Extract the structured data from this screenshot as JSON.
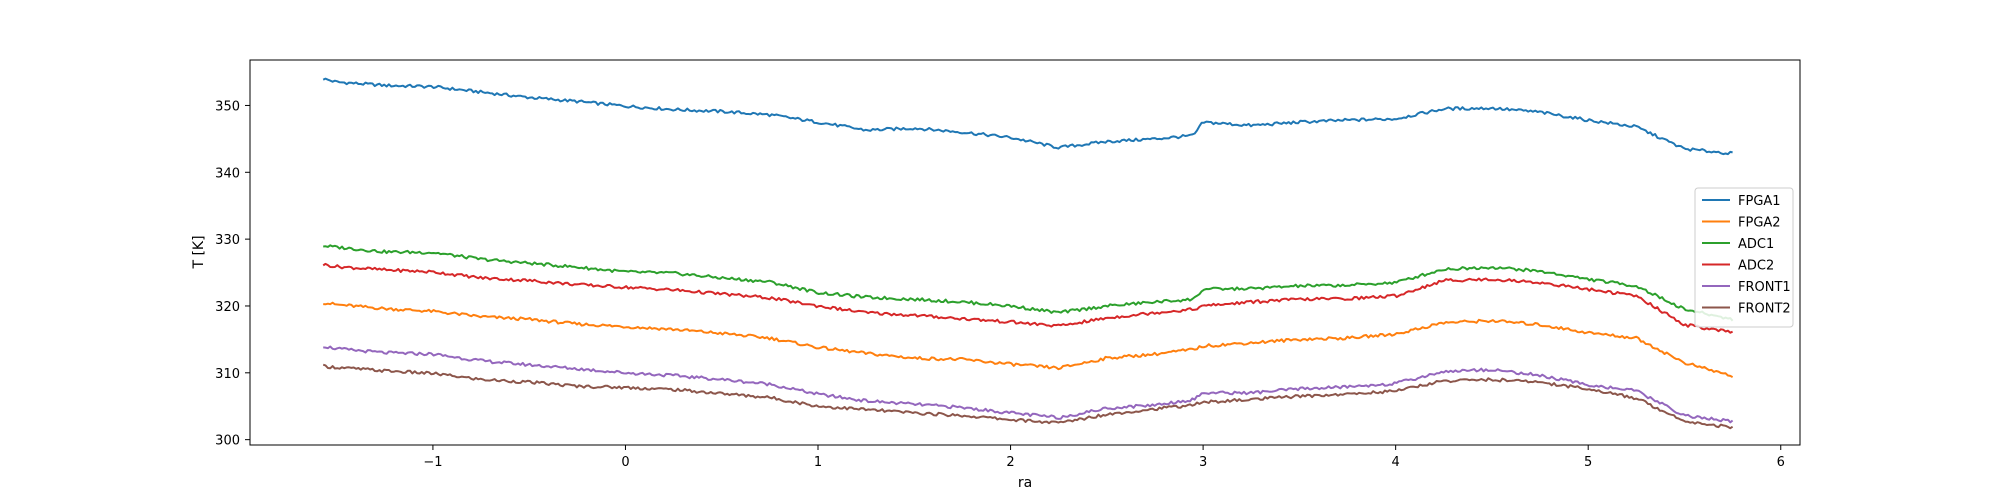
{
  "chart_data": {
    "type": "line",
    "xlabel": "ra",
    "ylabel": "T [K]",
    "xlim": [
      -1.95,
      6.1
    ],
    "ylim": [
      299.2,
      356.8
    ],
    "xticks": [
      -1,
      0,
      1,
      2,
      3,
      4,
      5,
      6
    ],
    "xtick_labels": [
      "−1",
      "0",
      "1",
      "2",
      "3",
      "4",
      "5",
      "6"
    ],
    "yticks": [
      300,
      310,
      320,
      330,
      340,
      350
    ],
    "ytick_labels": [
      "300",
      "310",
      "320",
      "330",
      "340",
      "350"
    ],
    "grid": false,
    "legend_position": "right",
    "x": [
      -1.57,
      -1.5,
      -1.25,
      -1.0,
      -0.75,
      -0.5,
      -0.25,
      0.0,
      0.25,
      0.5,
      0.75,
      1.0,
      1.25,
      1.5,
      1.75,
      2.0,
      2.25,
      2.5,
      2.75,
      2.95,
      3.0,
      3.25,
      3.5,
      3.75,
      4.0,
      4.25,
      4.5,
      4.75,
      5.0,
      5.25,
      5.5,
      5.75
    ],
    "series": [
      {
        "name": "FPGA1",
        "color": "#1f77b4",
        "values": [
          354.0,
          353.5,
          353.0,
          352.8,
          352.0,
          351.2,
          350.6,
          349.9,
          349.4,
          349.1,
          348.6,
          347.5,
          346.3,
          346.6,
          346.0,
          345.2,
          343.7,
          344.6,
          345.0,
          345.5,
          347.5,
          347.0,
          347.5,
          347.8,
          348.0,
          349.5,
          349.6,
          349.0,
          347.8,
          346.8,
          343.5,
          342.8
        ]
      },
      {
        "name": "FPGA2",
        "color": "#ff7f0e",
        "values": [
          320.5,
          320.2,
          319.6,
          319.2,
          318.4,
          318.0,
          317.3,
          316.9,
          316.5,
          315.9,
          315.2,
          313.8,
          312.9,
          312.2,
          312.0,
          311.3,
          310.7,
          312.2,
          312.8,
          313.5,
          314.0,
          314.5,
          315.0,
          315.2,
          315.8,
          317.5,
          317.8,
          317.2,
          316.0,
          315.2,
          311.5,
          309.5
        ]
      },
      {
        "name": "ADC1",
        "color": "#2ca02c",
        "values": [
          329.0,
          328.8,
          328.1,
          328.0,
          327.0,
          326.4,
          325.8,
          325.1,
          324.9,
          324.2,
          323.6,
          322.0,
          321.3,
          321.0,
          320.6,
          320.0,
          319.0,
          320.0,
          320.6,
          321.0,
          322.5,
          322.6,
          323.0,
          323.1,
          323.5,
          325.5,
          325.8,
          325.2,
          324.0,
          323.0,
          319.5,
          318.0
        ]
      },
      {
        "name": "ADC2",
        "color": "#d62728",
        "values": [
          326.2,
          325.9,
          325.4,
          325.1,
          324.2,
          323.8,
          323.2,
          322.8,
          322.4,
          321.8,
          321.2,
          320.0,
          319.0,
          318.6,
          318.1,
          317.6,
          317.0,
          318.2,
          319.0,
          319.5,
          320.0,
          320.6,
          321.0,
          321.1,
          321.5,
          323.8,
          324.0,
          323.5,
          322.5,
          321.5,
          317.2,
          316.0
        ]
      },
      {
        "name": "FRONT1",
        "color": "#9467bd",
        "values": [
          314.0,
          313.6,
          313.0,
          312.8,
          311.8,
          311.2,
          310.6,
          310.0,
          309.6,
          309.0,
          308.3,
          306.8,
          305.8,
          305.3,
          304.8,
          304.0,
          303.3,
          304.7,
          305.2,
          306.0,
          307.0,
          307.0,
          307.6,
          307.9,
          308.4,
          310.2,
          310.5,
          309.6,
          308.2,
          307.3,
          303.6,
          302.7
        ]
      },
      {
        "name": "FRONT2",
        "color": "#8c564b",
        "values": [
          311.0,
          310.8,
          310.3,
          309.9,
          309.0,
          308.6,
          308.0,
          307.8,
          307.5,
          306.9,
          306.3,
          305.0,
          304.5,
          304.0,
          303.6,
          303.0,
          302.5,
          303.8,
          304.6,
          305.2,
          305.6,
          306.0,
          306.5,
          306.8,
          307.3,
          308.8,
          309.0,
          308.6,
          307.6,
          306.2,
          302.8,
          301.8
        ]
      }
    ]
  }
}
